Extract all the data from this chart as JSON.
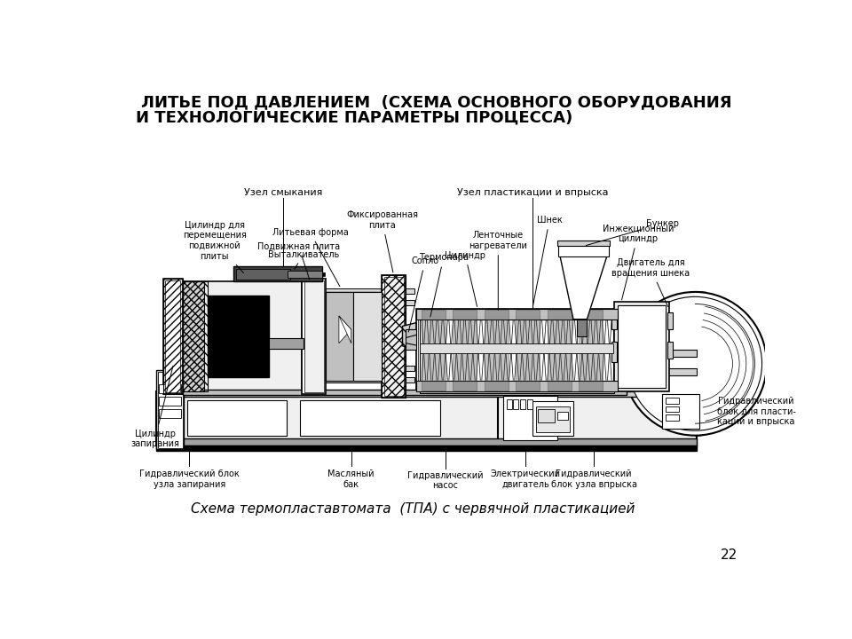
{
  "title_line1": "ЛИТЬЕ ПОД ДАВЛЕНИЕМ  (СХЕМА ОСНОВНОГО ОБОРУДОВАНИЯ",
  "title_line2": "И ТЕХНОЛОГИЧЕСКИЕ ПАРАМЕТРЫ ПРОЦЕССА)",
  "subtitle": "Схема термопластавтомата  (ТПА) с червячной пластикацией",
  "page_number": "22",
  "bg_color": "#ffffff",
  "label_uzzel_smykaniya": "Узел смыкания",
  "label_uzzel_plastikacii": "Узел пластикации и впрыска",
  "label_cylinder_zapir": "Цилиндр\nзапирания",
  "label_cylinder_perem": "Цилиндр для\nперемещения\nподвижной\nплиты",
  "label_litevaya_forma": "Литьевая форма",
  "label_podvizhnaya_plita": "Подвижная плита",
  "label_vitalivatel": "Выталкиватель",
  "label_fiksirovannaya": "Фиксированная\nплита",
  "label_soplo": "Сопло",
  "label_termopar": "Термопара",
  "label_cylinder_nagrev": "Цилиндр",
  "label_lentochnye": "Ленточные\nнагреватели",
  "label_shnek": "Шнек",
  "label_bunker": "Бункер",
  "label_injekcionniy": "Инжекционный\nцилиндр",
  "label_dvigatel_shnek": "Двигатель для\nвращения шнека",
  "label_gidravl_blok_zap": "Гидравлический блок\nузла запирания",
  "label_maslyaniy_bak": "Масляный\nбак",
  "label_gidravl_nasos": "Гидравлический\nнасос",
  "label_elektr_dvigatel": "Электрический\nдвигатель",
  "label_gidravl_blok_vpryska": "Гидравлический\nблок узла впрыска",
  "label_gidravl_blok_plastik": "Гидравлический\nблок для пласти-\nкации и впрыска"
}
